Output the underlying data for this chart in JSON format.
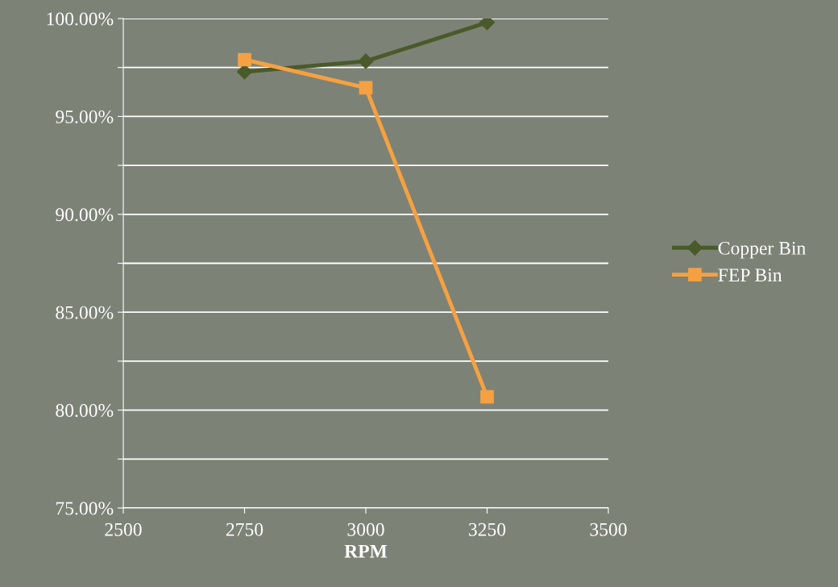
{
  "chart_data": {
    "type": "line",
    "xlabel": "RPM",
    "x": [
      2750,
      3000,
      3250
    ],
    "series": [
      {
        "name": "Copper Bin",
        "color": "#4a5a2a",
        "values": [
          97.28,
          97.82,
          99.8
        ],
        "marker": "diamond"
      },
      {
        "name": "FEP Bin",
        "color": "#f5a142",
        "values": [
          97.9,
          96.46,
          80.68
        ],
        "marker": "square"
      }
    ],
    "xlim": [
      2500,
      3500
    ],
    "xticks": [
      2500,
      2750,
      3000,
      3250,
      3500
    ],
    "ylim": [
      75,
      100
    ],
    "yticks": [
      {
        "value": 75,
        "label": "75.00%"
      },
      {
        "value": 77.5,
        "label": null
      },
      {
        "value": 80,
        "label": "80.00%"
      },
      {
        "value": 82.5,
        "label": null
      },
      {
        "value": 85,
        "label": "85.00%"
      },
      {
        "value": 87.5,
        "label": null
      },
      {
        "value": 90,
        "label": "90.00%"
      },
      {
        "value": 92.5,
        "label": null
      },
      {
        "value": 95,
        "label": "95.00%"
      },
      {
        "value": 97.5,
        "label": null
      },
      {
        "value": 100,
        "label": "100.00%"
      }
    ],
    "grid": "y",
    "legend": "right",
    "line_style": "solid"
  }
}
